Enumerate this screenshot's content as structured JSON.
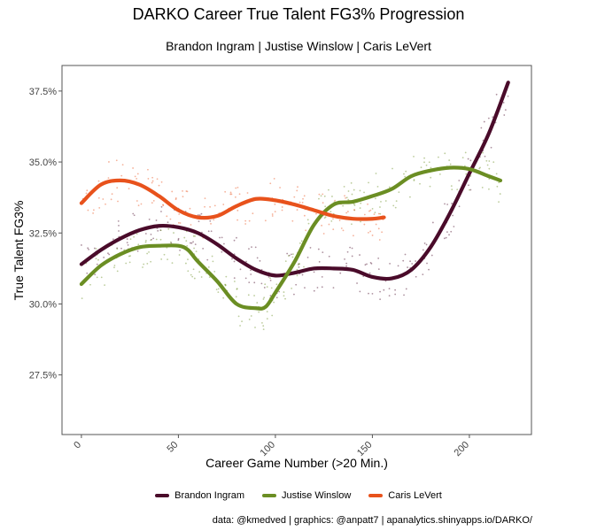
{
  "page": {
    "caption": "data: @kmedved | graphics: @anpatt7 | apanalytics.shinyapps.io/DARKO/"
  },
  "chart_data": {
    "type": "line",
    "title": "DARKO Career True Talent FG3% Progression",
    "subtitle": "Brandon Ingram | Justise Winslow | Caris LeVert",
    "xlabel": "Career Game Number (>20 Min.)",
    "ylabel": "True Talent FG3%",
    "xlim": [
      -10,
      232
    ],
    "ylim": [
      25.4,
      38.4
    ],
    "x_ticks": [
      0,
      50,
      100,
      150,
      200
    ],
    "x_tick_labels": [
      "0",
      "50",
      "100",
      "150",
      "200"
    ],
    "y_ticks": [
      27.5,
      30.0,
      32.5,
      35.0,
      37.5
    ],
    "y_tick_labels": [
      "27.5%",
      "30.0%",
      "32.5%",
      "35.0%",
      "37.5%"
    ],
    "grid": false,
    "legend": "bottom",
    "series": [
      {
        "name": "Brandon Ingram",
        "color": "#4a0b2a",
        "x": [
          0,
          10,
          20,
          30,
          40,
          50,
          60,
          70,
          80,
          90,
          100,
          110,
          120,
          130,
          140,
          150,
          160,
          170,
          180,
          190,
          200,
          210,
          220
        ],
        "y": [
          31.4,
          31.9,
          32.3,
          32.6,
          32.75,
          32.7,
          32.5,
          32.1,
          31.6,
          31.2,
          31.0,
          31.1,
          31.25,
          31.25,
          31.2,
          30.95,
          30.9,
          31.2,
          32.0,
          33.2,
          34.6,
          36.0,
          37.8
        ]
      },
      {
        "name": "Justise Winslow",
        "color": "#6b8e23",
        "x": [
          0,
          10,
          20,
          30,
          40,
          50,
          55,
          60,
          70,
          80,
          90,
          95,
          100,
          110,
          120,
          130,
          140,
          150,
          160,
          170,
          180,
          190,
          200,
          210,
          216
        ],
        "y": [
          30.7,
          31.35,
          31.75,
          32.0,
          32.05,
          32.05,
          31.9,
          31.5,
          30.8,
          30.0,
          29.85,
          29.9,
          30.4,
          31.5,
          32.8,
          33.5,
          33.6,
          33.8,
          34.05,
          34.5,
          34.7,
          34.8,
          34.75,
          34.5,
          34.35
        ]
      },
      {
        "name": "Caris LeVert",
        "color": "#e8521c",
        "x": [
          0,
          10,
          20,
          30,
          40,
          50,
          60,
          70,
          80,
          90,
          100,
          110,
          120,
          130,
          140,
          150,
          156
        ],
        "y": [
          33.55,
          34.2,
          34.35,
          34.2,
          33.8,
          33.3,
          33.05,
          33.1,
          33.45,
          33.7,
          33.65,
          33.5,
          33.3,
          33.1,
          33.0,
          33.0,
          33.05
        ]
      }
    ]
  }
}
